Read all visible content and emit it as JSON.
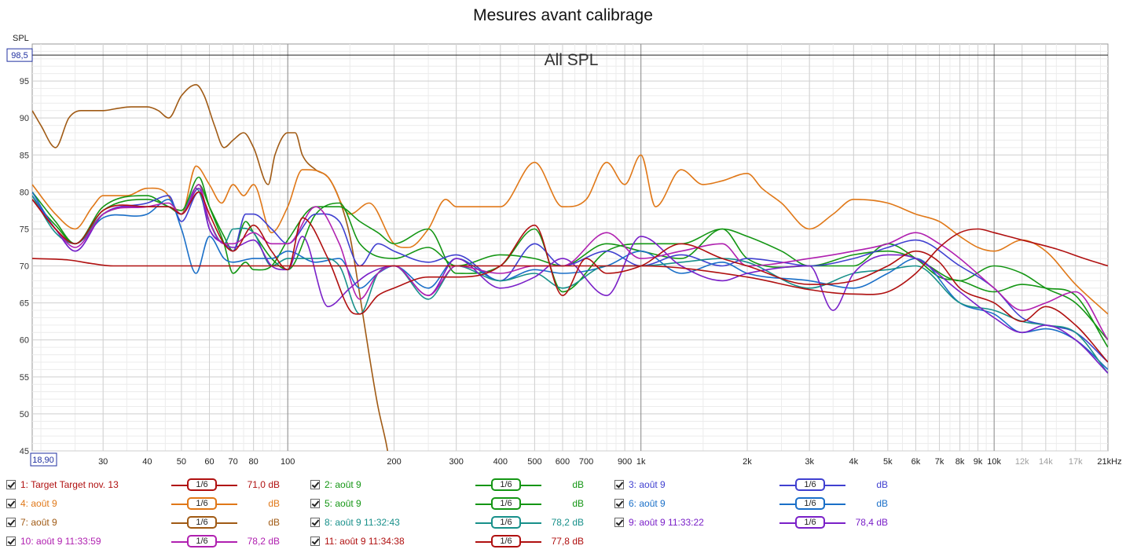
{
  "title": "Mesures avant calibrage",
  "ylabel": "SPL",
  "plot_label": "All SPL",
  "cursor_y_readout": "98,5",
  "cursor_x_readout": "18,90",
  "chart_data": {
    "type": "line",
    "title": "Mesures avant calibrage",
    "ylabel": "SPL",
    "xlabel": "",
    "x_unit": "kHz",
    "x_scale": "log",
    "xlim": [
      18.9,
      21000
    ],
    "ylim": [
      45,
      100
    ],
    "grid": true,
    "y_ticks": [
      45,
      50,
      55,
      60,
      65,
      70,
      75,
      80,
      85,
      90,
      95
    ],
    "y_tick_labels": [
      "45",
      "50",
      "55",
      "60",
      "65",
      "70",
      "75",
      "80",
      "85",
      "90",
      "95"
    ],
    "x_ticks": [
      30,
      40,
      50,
      60,
      70,
      80,
      100,
      200,
      300,
      400,
      500,
      600,
      700,
      900,
      1000,
      2000,
      3000,
      4000,
      5000,
      6000,
      7000,
      8000,
      9000,
      10000,
      12000,
      14000,
      17000,
      21000
    ],
    "x_tick_labels": [
      "30",
      "40",
      "50",
      "60",
      "70",
      "80",
      "100",
      "200",
      "300",
      "400",
      "500",
      "600",
      "700",
      "900",
      "1k",
      "2k",
      "3k",
      "4k",
      "5k",
      "6k",
      "7k",
      "8k",
      "9k",
      "10k",
      "12k",
      "14k",
      "17k",
      "21kHz"
    ],
    "x_tick_grey": [
      false,
      false,
      false,
      false,
      false,
      false,
      false,
      false,
      false,
      false,
      false,
      false,
      false,
      false,
      false,
      false,
      false,
      false,
      false,
      false,
      false,
      false,
      false,
      false,
      true,
      true,
      true,
      false
    ],
    "series": [
      {
        "name": "1: Target Target nov. 13",
        "color": "#b01010",
        "smoothing": "1/6",
        "level": "71,0 dB",
        "x": [
          18.9,
          24,
          28,
          32,
          40,
          100,
          1000,
          2000,
          3000,
          4000,
          5000,
          6000,
          7000,
          8000,
          9000,
          10000,
          12000,
          15000,
          18000,
          21000
        ],
        "y": [
          71,
          70.8,
          70.3,
          70,
          70,
          70,
          70,
          68.5,
          66.8,
          66.2,
          66.5,
          69,
          72.5,
          74.5,
          75,
          74.5,
          73.5,
          72.3,
          71,
          70
        ]
      },
      {
        "name": "2: août 9",
        "color": "#149614",
        "smoothing": "1/6",
        "level": "dB",
        "x": [
          18.9,
          22,
          25,
          30,
          40,
          46,
          50,
          56,
          60,
          66,
          70,
          76,
          80,
          90,
          100,
          120,
          140,
          160,
          180,
          200,
          250,
          300,
          400,
          500,
          600,
          800,
          1000,
          1300,
          1700,
          2000,
          2500,
          3000,
          4000,
          5000,
          6000,
          8000,
          10000,
          12000,
          14000,
          17000,
          21000
        ],
        "y": [
          80,
          76,
          73,
          78,
          79.5,
          78,
          77.5,
          82,
          78,
          73,
          69,
          70.5,
          69.5,
          70,
          73.5,
          78,
          78,
          76,
          74.5,
          73,
          75,
          69,
          70,
          75,
          66.5,
          72,
          73,
          73,
          75,
          74,
          72,
          70,
          71.5,
          72,
          71,
          68,
          70,
          69,
          67,
          65,
          60
        ]
      },
      {
        "name": "3: août 9",
        "color": "#4040d0",
        "smoothing": "1/6",
        "level": "dB",
        "x": [
          18.9,
          22,
          25,
          30,
          40,
          46,
          50,
          56,
          60,
          66,
          70,
          76,
          80,
          90,
          100,
          120,
          140,
          160,
          180,
          200,
          250,
          300,
          400,
          500,
          600,
          800,
          1000,
          1300,
          1700,
          2000,
          2500,
          3000,
          4000,
          5000,
          6000,
          8000,
          10000,
          12000,
          14000,
          17000,
          21000
        ],
        "y": [
          79.5,
          75,
          72,
          77,
          78.5,
          79.5,
          76,
          80,
          75,
          73,
          72,
          77,
          77,
          75,
          73,
          77,
          76,
          70,
          73,
          72,
          70.5,
          71.5,
          68,
          73,
          70,
          72,
          70,
          71.5,
          70,
          71,
          70.5,
          70,
          71,
          72.5,
          73.5,
          70,
          67,
          63,
          62,
          61,
          57
        ]
      },
      {
        "name": "4: août 9",
        "color": "#e07818",
        "smoothing": "1/6",
        "level": "dB",
        "x": [
          18.9,
          22,
          25,
          28,
          30,
          35,
          40,
          45,
          50,
          55,
          60,
          65,
          70,
          75,
          80,
          90,
          100,
          110,
          130,
          150,
          170,
          200,
          220,
          250,
          280,
          300,
          400,
          500,
          600,
          700,
          800,
          900,
          1000,
          1100,
          1300,
          1500,
          1700,
          2000,
          2200,
          2500,
          3000,
          3500,
          4000,
          5000,
          6000,
          7000,
          8000,
          9000,
          10000,
          12000,
          14000,
          17000,
          21000
        ],
        "y": [
          81,
          77,
          75,
          78,
          79.5,
          79.5,
          80.5,
          80,
          77,
          83.5,
          81,
          78.5,
          81,
          79.5,
          81,
          74.5,
          78,
          83,
          82,
          77,
          78.5,
          73,
          72.5,
          75,
          79,
          78,
          78,
          84,
          78,
          79,
          84,
          81,
          85,
          78,
          83,
          81,
          81.5,
          82.5,
          80.5,
          78.5,
          75,
          77,
          79,
          78.5,
          77,
          76,
          74,
          72.5,
          72,
          73.5,
          72,
          67.5,
          63.5
        ]
      },
      {
        "name": "5: août 9",
        "color": "#149614",
        "smoothing": "1/6",
        "level": "dB",
        "x": [
          18.9,
          22,
          25,
          30,
          40,
          46,
          50,
          56,
          60,
          66,
          70,
          76,
          80,
          90,
          100,
          120,
          140,
          160,
          200,
          250,
          300,
          400,
          500,
          600,
          800,
          1000,
          1300,
          1700,
          2000,
          3000,
          4000,
          5000,
          6000,
          7000,
          8000,
          10000,
          12000,
          14000,
          17000,
          21000
        ],
        "y": [
          79,
          75.5,
          73,
          77.5,
          79,
          78,
          77,
          81,
          78,
          74,
          72,
          76,
          74.5,
          71,
          69.5,
          77,
          78.5,
          73,
          71,
          72.5,
          70,
          71.5,
          71,
          70,
          73,
          72,
          71,
          75,
          71,
          70,
          70,
          73,
          71,
          68.5,
          68,
          66.5,
          67.5,
          67,
          66,
          59
        ]
      },
      {
        "name": "6: août 9",
        "color": "#1a6fc8",
        "smoothing": "1/6",
        "level": "dB",
        "x": [
          18.9,
          22,
          25,
          30,
          40,
          46,
          50,
          55,
          60,
          66,
          70,
          80,
          90,
          100,
          120,
          140,
          160,
          180,
          200,
          250,
          300,
          400,
          500,
          600,
          800,
          1000,
          1300,
          1700,
          2000,
          3000,
          4000,
          5000,
          6000,
          8000,
          10000,
          12000,
          14000,
          17000,
          21000
        ],
        "y": [
          80,
          75,
          73,
          76.5,
          77,
          79,
          75,
          69,
          74,
          71,
          70.5,
          71,
          71,
          72,
          70.5,
          71,
          67,
          69,
          70,
          67,
          71,
          68,
          69.5,
          69,
          70,
          72,
          69,
          70.5,
          69,
          68,
          67,
          69,
          71,
          65,
          63.5,
          61,
          61.5,
          60,
          56
        ]
      },
      {
        "name": "7: août 9",
        "color": "#a05a14",
        "smoothing": "1/6",
        "level": "dB",
        "x": [
          18.9,
          20,
          22,
          24,
          26,
          28,
          30,
          33,
          36,
          40,
          43,
          46,
          50,
          55,
          58,
          62,
          66,
          70,
          75,
          80,
          88,
          92,
          100,
          105,
          110,
          120,
          130,
          140,
          150,
          160,
          170,
          180,
          190,
          195
        ],
        "y": [
          91,
          89,
          86,
          90,
          91,
          91,
          91,
          91.3,
          91.5,
          91.5,
          91,
          90,
          93,
          94.5,
          93,
          89,
          86,
          87,
          88,
          86,
          81,
          85,
          88,
          88,
          85,
          83,
          82,
          79,
          74,
          66,
          58,
          51,
          46,
          43
        ]
      },
      {
        "name": "8: août 9 11:32:43",
        "color": "#18908a",
        "smoothing": "1/6",
        "level": "78,2 dB",
        "x": [
          18.9,
          22,
          25,
          30,
          40,
          46,
          50,
          55,
          60,
          66,
          70,
          80,
          90,
          100,
          120,
          140,
          160,
          180,
          200,
          250,
          300,
          400,
          500,
          600,
          800,
          1000,
          1300,
          1700,
          2000,
          3000,
          4000,
          5000,
          6000,
          8000,
          10000,
          12000,
          14000,
          17000,
          21000
        ],
        "y": [
          79.5,
          74.5,
          73,
          77,
          78,
          78,
          77,
          80.5,
          76,
          73,
          75,
          74.5,
          70,
          71,
          71,
          70,
          63.5,
          69,
          70,
          65.5,
          70,
          68,
          69,
          67,
          70,
          70,
          70.5,
          71,
          70.5,
          67,
          69,
          69.5,
          70,
          65,
          64,
          62.5,
          62,
          61,
          55.5
        ]
      },
      {
        "name": "9: août 9 11:33:22",
        "color": "#7a20c8",
        "smoothing": "1/6",
        "level": "78,4 dB",
        "x": [
          18.9,
          22,
          25,
          30,
          40,
          46,
          50,
          56,
          60,
          66,
          70,
          80,
          90,
          100,
          110,
          130,
          150,
          170,
          200,
          250,
          300,
          400,
          500,
          600,
          800,
          1000,
          1300,
          1700,
          2000,
          3000,
          3500,
          4000,
          5000,
          6000,
          8000,
          10000,
          12000,
          14000,
          17000,
          21000
        ],
        "y": [
          79,
          75,
          72,
          77,
          78,
          78,
          77,
          80.5,
          75,
          73,
          72.5,
          73.5,
          70,
          69.5,
          74,
          64.5,
          67,
          69,
          70,
          66,
          71,
          67,
          68.5,
          71,
          66,
          74,
          70,
          68,
          69,
          70,
          64,
          69,
          71.5,
          71,
          66.5,
          63,
          61,
          62,
          60,
          55.5
        ]
      },
      {
        "name": "10: août 9 11:33:59",
        "color": "#b020b0",
        "smoothing": "1/6",
        "level": "78,2 dB",
        "x": [
          18.9,
          22,
          25,
          30,
          40,
          46,
          50,
          56,
          60,
          66,
          70,
          80,
          90,
          100,
          120,
          140,
          160,
          180,
          200,
          250,
          300,
          400,
          500,
          600,
          800,
          1000,
          1300,
          1700,
          2000,
          3000,
          4000,
          5000,
          6000,
          7000,
          8000,
          10000,
          12000,
          14000,
          17000,
          21000
        ],
        "y": [
          79,
          75,
          72.5,
          77,
          78,
          78.5,
          77,
          81,
          76,
          73,
          73,
          74.5,
          73,
          73,
          78,
          73,
          65.5,
          69,
          70,
          66,
          70,
          69,
          70,
          70,
          74.5,
          71,
          72,
          73,
          70,
          71,
          72,
          73,
          74.5,
          73,
          71,
          67,
          64,
          65,
          66.5,
          60
        ]
      },
      {
        "name": "11: août 9 11:34:38",
        "color": "#b01010",
        "smoothing": "1/6",
        "level": "77,8 dB",
        "x": [
          18.9,
          22,
          25,
          30,
          40,
          46,
          50,
          56,
          60,
          66,
          70,
          80,
          90,
          100,
          110,
          130,
          150,
          160,
          180,
          200,
          250,
          300,
          400,
          500,
          600,
          700,
          800,
          1000,
          1300,
          1700,
          2000,
          3000,
          4000,
          5000,
          6000,
          7000,
          8000,
          10000,
          12000,
          14000,
          17000,
          21000
        ],
        "y": [
          79,
          75,
          73,
          77.5,
          78,
          78,
          77,
          80,
          77,
          73,
          72,
          75.5,
          72,
          69.5,
          76.5,
          71,
          64,
          63.5,
          66,
          67,
          68.5,
          68.5,
          70,
          75.5,
          66,
          71,
          69,
          70,
          73,
          71,
          70,
          67.5,
          68,
          70,
          72,
          70.5,
          67,
          65,
          62.5,
          64.5,
          62,
          57
        ]
      }
    ]
  },
  "legend_rows": [
    [
      {
        "i": 0,
        "x": 8,
        "smx": 218,
        "dbx": 276
      },
      {
        "i": 1,
        "x": 395,
        "smx": 605,
        "dbx": 663
      },
      {
        "i": 2,
        "x": 782,
        "smx": 992,
        "dbx": 1050
      }
    ],
    [
      {
        "i": 3,
        "x": 8,
        "smx": 218,
        "dbx": 276
      },
      {
        "i": 4,
        "x": 395,
        "smx": 605,
        "dbx": 663
      },
      {
        "i": 5,
        "x": 782,
        "smx": 992,
        "dbx": 1050
      }
    ],
    [
      {
        "i": 6,
        "x": 8,
        "smx": 218,
        "dbx": 276
      },
      {
        "i": 7,
        "x": 395,
        "smx": 605,
        "dbx": 663
      },
      {
        "i": 8,
        "x": 782,
        "smx": 992,
        "dbx": 1050
      }
    ],
    [
      {
        "i": 9,
        "x": 8,
        "smx": 218,
        "dbx": 276
      },
      {
        "i": 10,
        "x": 395,
        "smx": 605,
        "dbx": 663
      }
    ]
  ]
}
